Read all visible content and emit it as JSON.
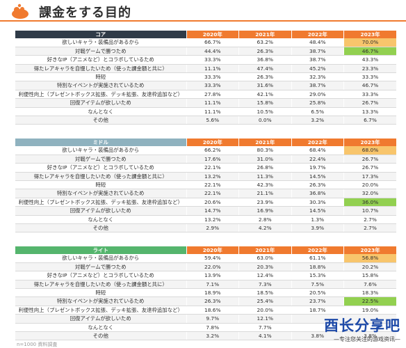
{
  "title": "課金をする目的",
  "colors": {
    "accent": "#f07a2f",
    "core_header": "#2f3b48",
    "middle_header": "#8fb2bf",
    "light_header": "#55b56d",
    "highlight_orange": "#f8c56c",
    "highlight_green": "#92d050"
  },
  "icons": {
    "logo": "orange-blob-logo"
  },
  "years": [
    "2020年",
    "2021年",
    "2022年",
    "2023年"
  ],
  "sections": [
    {
      "label": "コア",
      "rows": [
        {
          "label": "欲しいキャラ・装備品があるから",
          "values": [
            "66.7%",
            "63.2%",
            "48.4%",
            "70.0%"
          ],
          "highlight": "orange"
        },
        {
          "label": "対戦ゲームで勝つため",
          "values": [
            "44.4%",
            "26.3%",
            "38.7%",
            "46.7%"
          ],
          "highlight": "green"
        },
        {
          "label": "好きなIP（アニメなど）とコラボしているため",
          "values": [
            "33.3%",
            "36.8%",
            "38.7%",
            "43.3%"
          ]
        },
        {
          "label": "得たレアキャラを自慢したいため（使った課金額と共に）",
          "values": [
            "11.1%",
            "47.4%",
            "45.2%",
            "23.3%"
          ]
        },
        {
          "label": "時短",
          "values": [
            "33.3%",
            "26.3%",
            "32.3%",
            "33.3%"
          ]
        },
        {
          "label": "特別なイベントが実施されているため",
          "values": [
            "33.3%",
            "31.6%",
            "38.7%",
            "46.7%"
          ]
        },
        {
          "label": "利便性向上（プレゼントボックス拡張、デッキ拡張、友達枠追加など）",
          "values": [
            "27.8%",
            "42.1%",
            "29.0%",
            "33.3%"
          ]
        },
        {
          "label": "回復アイテムが欲しいため",
          "values": [
            "11.1%",
            "15.8%",
            "25.8%",
            "26.7%"
          ]
        },
        {
          "label": "なんとなく",
          "values": [
            "11.1%",
            "10.5%",
            "6.5%",
            "13.3%"
          ]
        },
        {
          "label": "その他",
          "values": [
            "5.6%",
            "0.0%",
            "3.2%",
            "6.7%"
          ]
        }
      ]
    },
    {
      "label": "ミドル",
      "rows": [
        {
          "label": "欲しいキャラ・装備品があるから",
          "values": [
            "66.2%",
            "80.3%",
            "68.4%",
            "68.0%"
          ],
          "highlight": "orange"
        },
        {
          "label": "対戦ゲームで勝つため",
          "values": [
            "17.6%",
            "31.0%",
            "22.4%",
            "26.7%"
          ]
        },
        {
          "label": "好きなIP（アニメなど）とコラボしているため",
          "values": [
            "22.1%",
            "26.8%",
            "19.7%",
            "26.7%"
          ]
        },
        {
          "label": "得たレアキャラを自慢したいため（使った課金額と共に）",
          "values": [
            "13.2%",
            "11.3%",
            "14.5%",
            "17.3%"
          ]
        },
        {
          "label": "時短",
          "values": [
            "22.1%",
            "42.3%",
            "26.3%",
            "20.0%"
          ]
        },
        {
          "label": "特別なイベントが実施されているため",
          "values": [
            "22.1%",
            "21.1%",
            "36.8%",
            "32.0%"
          ]
        },
        {
          "label": "利便性向上（プレゼントボックス拡張、デッキ拡張、友達枠追加など）",
          "values": [
            "20.6%",
            "23.9%",
            "30.3%",
            "36.0%"
          ],
          "highlight": "green"
        },
        {
          "label": "回復アイテムが欲しいため",
          "values": [
            "14.7%",
            "16.9%",
            "14.5%",
            "10.7%"
          ]
        },
        {
          "label": "なんとなく",
          "values": [
            "13.2%",
            "2.8%",
            "1.3%",
            "2.7%"
          ]
        },
        {
          "label": "その他",
          "values": [
            "2.9%",
            "4.2%",
            "3.9%",
            "2.7%"
          ]
        }
      ]
    },
    {
      "label": "ライト",
      "rows": [
        {
          "label": "欲しいキャラ・装備品があるから",
          "values": [
            "59.4%",
            "63.0%",
            "61.1%",
            "56.8%"
          ],
          "highlight": "orange"
        },
        {
          "label": "対戦ゲームで勝つため",
          "values": [
            "22.0%",
            "20.3%",
            "18.8%",
            "20.2%"
          ]
        },
        {
          "label": "好きなIP（アニメなど）とコラボしているため",
          "values": [
            "13.9%",
            "12.4%",
            "15.3%",
            "15.8%"
          ]
        },
        {
          "label": "得たレアキャラを自慢したいため（使った課金額と共に）",
          "values": [
            "7.1%",
            "7.3%",
            "7.5%",
            "7.6%"
          ]
        },
        {
          "label": "時短",
          "values": [
            "18.9%",
            "18.5%",
            "20.5%",
            "18.3%"
          ]
        },
        {
          "label": "特別なイベントが実施されているため",
          "values": [
            "26.3%",
            "25.4%",
            "23.7%",
            "22.5%"
          ],
          "highlight": "green"
        },
        {
          "label": "利便性向上（プレゼントボックス拡張、デッキ拡張、友達枠追加など）",
          "values": [
            "18.6%",
            "20.0%",
            "18.7%",
            "19.0%"
          ]
        },
        {
          "label": "回復アイテムが欲しいため",
          "values": [
            "9.7%",
            "12.1%",
            "",
            ""
          ]
        },
        {
          "label": "なんとなく",
          "values": [
            "7.8%",
            "7.7%",
            "",
            ""
          ]
        },
        {
          "label": "その他",
          "values": [
            "3.2%",
            "4.1%",
            "3.8%",
            "3.8%"
          ]
        }
      ]
    }
  ],
  "watermark": {
    "main": "酉长分享吧",
    "sub": "—专注您关注的游戏资讯—"
  },
  "footnote": "n=1000 資料調査"
}
